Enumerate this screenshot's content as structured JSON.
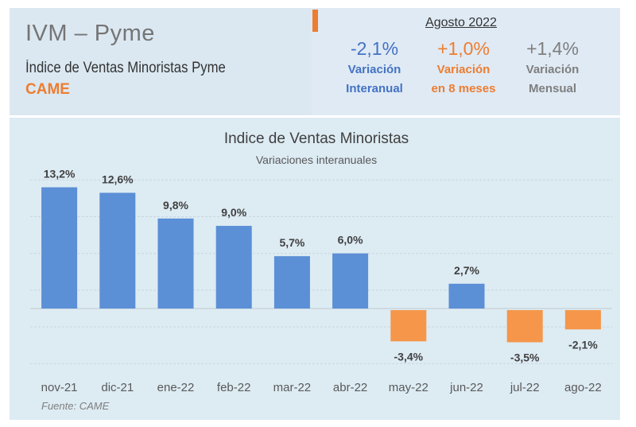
{
  "header": {
    "title": "IVM  –  Pyme",
    "subtitle": "Índice de Ventas Minoristas Pyme",
    "source_brand": "CAME",
    "period": "Agosto 2022",
    "kpis": [
      {
        "value": "-2,1%",
        "line1": "Variación",
        "line2": "Interanual",
        "color": "#4472c4"
      },
      {
        "value": "+1,0%",
        "line1": "Variación",
        "line2": "en 8 meses",
        "color": "#ed7d31"
      },
      {
        "value": "+1,4%",
        "line1": "Variación",
        "line2": "Mensual",
        "color": "#7f7f7f"
      }
    ]
  },
  "chart_data": {
    "type": "bar",
    "title": "Indice de Ventas Minoristas",
    "subtitle": "Variaciones interanuales",
    "categories": [
      "nov-21",
      "dic-21",
      "ene-22",
      "feb-22",
      "mar-22",
      "abr-22",
      "may-22",
      "jun-22",
      "jul-22",
      "ago-22"
    ],
    "values": [
      13.2,
      12.6,
      9.8,
      9.0,
      5.7,
      6.0,
      -3.4,
      2.7,
      -3.5,
      -2.1
    ],
    "data_labels": [
      "13,2%",
      "12,6%",
      "9,8%",
      "9,0%",
      "5,7%",
      "6,0%",
      "-3,4%",
      "2,7%",
      "-3,5%",
      "-2,1%"
    ],
    "ylim": [
      -6,
      14
    ],
    "grid": true,
    "colors": {
      "positive": "#5b8fd6",
      "negative": "#f5964a"
    },
    "source": "Fuente: CAME"
  }
}
